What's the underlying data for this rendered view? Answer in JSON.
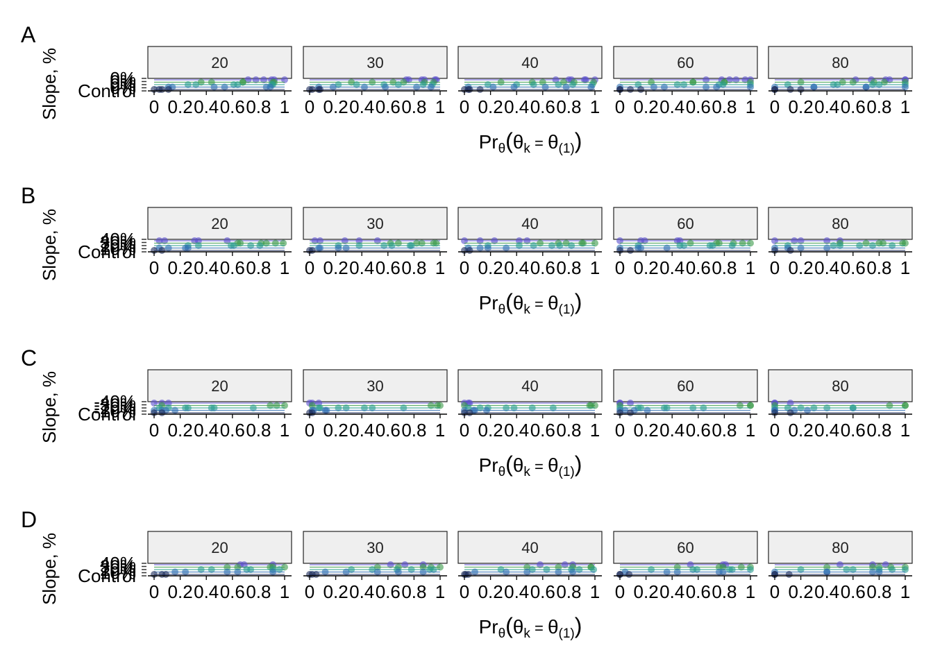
{
  "x_tick_labels": [
    "0",
    "0.2",
    "0.4",
    "0.6",
    "0.8",
    "1"
  ],
  "x_axis_label": {
    "prefix": "Pr",
    "prefix_sub": "θ",
    "open": "(",
    "theta_k": "θ",
    "k_sub": "k",
    "equals": " = ",
    "theta_1": "θ",
    "one_sub": "(1)",
    "close": ")"
  },
  "y_axis_label": "Slope, %",
  "colors": {
    "purple": "#5a4fcf",
    "green": "#3a9a4a",
    "teal": "#2a9d8f",
    "blue": "#2f6fb3",
    "navy": "#1c2b5a",
    "strip_fill": "#efefef"
  },
  "chart_data": [
    {
      "type": "scatter",
      "panel_label": "A",
      "facets": [
        "20",
        "30",
        "40",
        "60",
        "80"
      ],
      "xlim": [
        0,
        1
      ],
      "ylabel": "Slope, %",
      "y_tick_labels": [
        "Control",
        "0%",
        "0%",
        "0%",
        "0%"
      ],
      "series": [
        {
          "color": "#5a4fcf",
          "points": [
            [
              0.72,
              4
            ],
            [
              0.78,
              4
            ],
            [
              0.84,
              4
            ],
            [
              0.9,
              4
            ],
            [
              0.95,
              4
            ],
            [
              0.98,
              4
            ]
          ]
        },
        {
          "color": "#3a9a4a",
          "points": [
            [
              0.3,
              3
            ],
            [
              0.5,
              3
            ],
            [
              0.62,
              3
            ],
            [
              0.74,
              3
            ],
            [
              0.86,
              3
            ],
            [
              0.97,
              3
            ]
          ]
        },
        {
          "color": "#2a9d8f",
          "points": [
            [
              0.2,
              2
            ],
            [
              0.38,
              2
            ],
            [
              0.55,
              2
            ],
            [
              0.7,
              2
            ],
            [
              0.85,
              2
            ],
            [
              0.96,
              2
            ]
          ]
        },
        {
          "color": "#2f6fb3",
          "points": [
            [
              0.05,
              1
            ],
            [
              0.2,
              1
            ],
            [
              0.4,
              1
            ],
            [
              0.6,
              1
            ],
            [
              0.8,
              1
            ],
            [
              0.95,
              1
            ]
          ]
        },
        {
          "color": "#1c2b5a",
          "points": [
            [
              0.0,
              0
            ],
            [
              0.02,
              0
            ],
            [
              0.05,
              0
            ],
            [
              0.1,
              0
            ]
          ]
        }
      ]
    },
    {
      "type": "scatter",
      "panel_label": "B",
      "facets": [
        "20",
        "30",
        "40",
        "60",
        "80"
      ],
      "xlim": [
        0,
        1
      ],
      "ylabel": "Slope, %",
      "y_tick_labels": [
        "Control",
        "10%",
        "20%",
        "30%",
        "40%"
      ],
      "series": [
        {
          "color": "#5a4fcf",
          "points": [
            [
              0.02,
              4
            ],
            [
              0.1,
              4
            ],
            [
              0.25,
              4
            ],
            [
              0.4,
              4
            ],
            [
              0.5,
              4
            ]
          ]
        },
        {
          "color": "#3a9a4a",
          "points": [
            [
              0.6,
              3
            ],
            [
              0.7,
              3
            ],
            [
              0.8,
              3
            ],
            [
              0.88,
              3
            ],
            [
              0.93,
              3
            ],
            [
              0.99,
              3
            ]
          ]
        },
        {
          "color": "#2a9d8f",
          "points": [
            [
              0.2,
              2
            ],
            [
              0.4,
              2
            ],
            [
              0.55,
              2
            ],
            [
              0.65,
              2
            ],
            [
              0.75,
              2
            ],
            [
              0.8,
              2
            ]
          ]
        },
        {
          "color": "#2f6fb3",
          "points": [
            [
              0.05,
              1
            ],
            [
              0.1,
              1
            ],
            [
              0.2,
              1
            ],
            [
              0.3,
              1
            ]
          ]
        },
        {
          "color": "#1c2b5a",
          "points": [
            [
              0.0,
              0
            ],
            [
              0.02,
              0
            ]
          ]
        }
      ]
    },
    {
      "type": "scatter",
      "panel_label": "C",
      "facets": [
        "20",
        "30",
        "40",
        "60",
        "80"
      ],
      "xlim": [
        0,
        1
      ],
      "ylabel": "Slope, %",
      "y_tick_labels": [
        "Control",
        "-10%",
        "-20%",
        "-30%",
        "-40%"
      ],
      "series": [
        {
          "color": "#5a4fcf",
          "points": [
            [
              0.0,
              4
            ],
            [
              0.02,
              4
            ],
            [
              0.05,
              4
            ]
          ]
        },
        {
          "color": "#3a9a4a",
          "points": [
            [
              0.0,
              3
            ],
            [
              0.95,
              3
            ],
            [
              0.98,
              3
            ],
            [
              1.0,
              3
            ]
          ]
        },
        {
          "color": "#2a9d8f",
          "points": [
            [
              0.05,
              2
            ],
            [
              0.1,
              2
            ],
            [
              0.2,
              2
            ],
            [
              0.3,
              2
            ],
            [
              0.4,
              2
            ],
            [
              0.5,
              2
            ],
            [
              0.7,
              2
            ]
          ]
        },
        {
          "color": "#2f6fb3",
          "points": [
            [
              0.0,
              1
            ],
            [
              0.05,
              1
            ],
            [
              0.1,
              1
            ],
            [
              0.15,
              1
            ]
          ]
        },
        {
          "color": "#1c2b5a",
          "points": [
            [
              0.0,
              0
            ],
            [
              0.02,
              0
            ]
          ]
        }
      ]
    },
    {
      "type": "scatter",
      "panel_label": "D",
      "facets": [
        "20",
        "30",
        "40",
        "60",
        "80"
      ],
      "xlim": [
        0,
        1
      ],
      "ylabel": "Slope, %",
      "y_tick_labels": [
        "Control",
        "10%",
        "20%",
        "30%",
        "40%"
      ],
      "series": [
        {
          "color": "#5a4fcf",
          "points": [
            [
              0.6,
              4
            ],
            [
              0.75,
              4
            ],
            [
              0.85,
              4
            ]
          ]
        },
        {
          "color": "#3a9a4a",
          "points": [
            [
              0.5,
              3
            ],
            [
              0.7,
              3
            ],
            [
              0.85,
              3
            ],
            [
              0.95,
              3
            ],
            [
              0.99,
              3
            ]
          ]
        },
        {
          "color": "#2a9d8f",
          "points": [
            [
              0.3,
              2
            ],
            [
              0.5,
              2
            ],
            [
              0.65,
              2
            ],
            [
              0.8,
              2
            ],
            [
              0.9,
              2
            ],
            [
              0.97,
              2
            ]
          ]
        },
        {
          "color": "#2f6fb3",
          "points": [
            [
              0.1,
              1
            ],
            [
              0.3,
              1
            ],
            [
              0.5,
              1
            ],
            [
              0.7,
              1
            ],
            [
              0.85,
              1
            ]
          ]
        },
        {
          "color": "#1c2b5a",
          "points": [
            [
              0.0,
              0
            ],
            [
              0.01,
              0
            ],
            [
              0.03,
              0
            ]
          ]
        }
      ]
    }
  ]
}
